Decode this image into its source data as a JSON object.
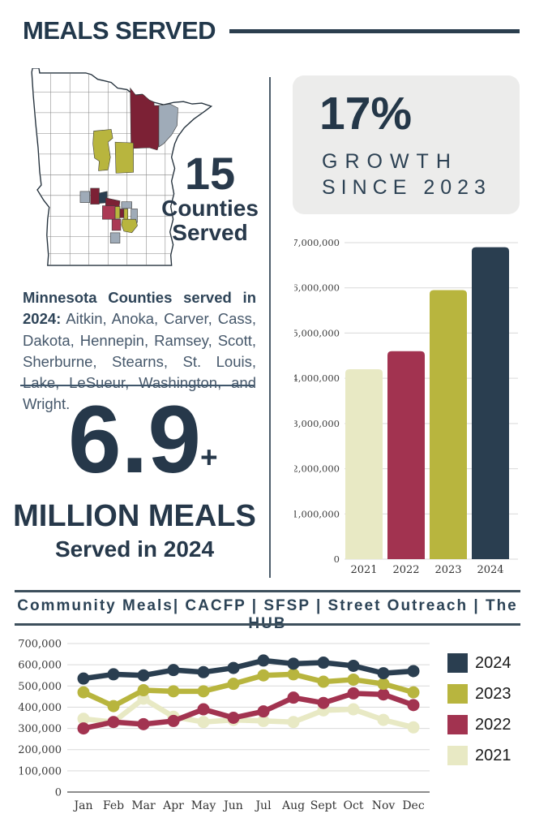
{
  "page_title": "MEALS SERVED",
  "colors": {
    "navy": "#26384a",
    "rule_navy": "#2b3e4e",
    "divider": "#4d5d6b",
    "box_gray": "#ececeb",
    "grid_gray": "#d9d9d9",
    "axis_text": "#3a3a3a"
  },
  "map_section": {
    "state": "Minnesota",
    "counties_count": "15",
    "counties_word": "Counties",
    "served_word": "Served",
    "intro_bold": "Minnesota Counties served in 2024:",
    "county_list": "Aitkin, Anoka, Carver, Cass, Dakota, Hennepin, Ramsey, Scott, Sherburne, Stearns, St. Louis, Lake, LeSueur, Washington, and Wright.",
    "county_fill_colors": {
      "deep_maroon": "#7c2135",
      "crimson": "#ab3a55",
      "olive": "#b8b53e",
      "slate": "#9fabb8",
      "navy": "#2a3e50"
    }
  },
  "growth_box": {
    "percent": "17%",
    "line1": "GROWTH",
    "line2": "SINCE 2023"
  },
  "big_stat": {
    "value": "6.9",
    "plus": "+",
    "line1": "MILLION MEALS",
    "line2": "Served in 2024"
  },
  "programs_bar": {
    "text": "Community Meals| CACFP | SFSP | Street Outreach | The HUB"
  },
  "chart_data": [
    {
      "type": "bar",
      "title": "",
      "categories": [
        "2021",
        "2022",
        "2023",
        "2024"
      ],
      "values": [
        4200000,
        4600000,
        5950000,
        6900000
      ],
      "bar_colors": [
        "#e8e9c4",
        "#a23350",
        "#b8b53e",
        "#2a3e50"
      ],
      "xlabel": "",
      "ylabel": "",
      "ylim": [
        0,
        7000000
      ],
      "ytick_interval": 1000000,
      "ytick_labels": [
        "0",
        "1,000,000",
        "2,000,000",
        "3,000,000",
        "4,000,000",
        "5,000,000",
        "6,000,000",
        "7,000,000"
      ],
      "grid": true
    },
    {
      "type": "line",
      "title": "",
      "x": [
        "Jan",
        "Feb",
        "Mar",
        "Apr",
        "May",
        "Jun",
        "Jul",
        "Aug",
        "Sept",
        "Oct",
        "Nov",
        "Dec"
      ],
      "series": [
        {
          "name": "2024",
          "color": "#2a3e50",
          "values": [
            535000,
            555000,
            550000,
            575000,
            565000,
            585000,
            620000,
            605000,
            610000,
            595000,
            560000,
            570000
          ]
        },
        {
          "name": "2023",
          "color": "#b8b53e",
          "values": [
            470000,
            405000,
            480000,
            475000,
            475000,
            510000,
            550000,
            555000,
            520000,
            530000,
            510000,
            470000
          ]
        },
        {
          "name": "2022",
          "color": "#a23350",
          "values": [
            300000,
            330000,
            320000,
            335000,
            390000,
            350000,
            380000,
            445000,
            420000,
            465000,
            460000,
            410000
          ]
        },
        {
          "name": "2021",
          "color": "#e8e9c4",
          "values": [
            345000,
            330000,
            440000,
            355000,
            330000,
            340000,
            335000,
            330000,
            385000,
            390000,
            340000,
            305000
          ]
        }
      ],
      "xlabel": "",
      "ylabel": "",
      "ylim": [
        0,
        700000
      ],
      "ytick_interval": 100000,
      "ytick_labels": [
        "0",
        "100,000",
        "200,000",
        "300,000",
        "400,000",
        "500,000",
        "600,000",
        "700,000"
      ],
      "grid": true,
      "legend_position": "right"
    }
  ]
}
